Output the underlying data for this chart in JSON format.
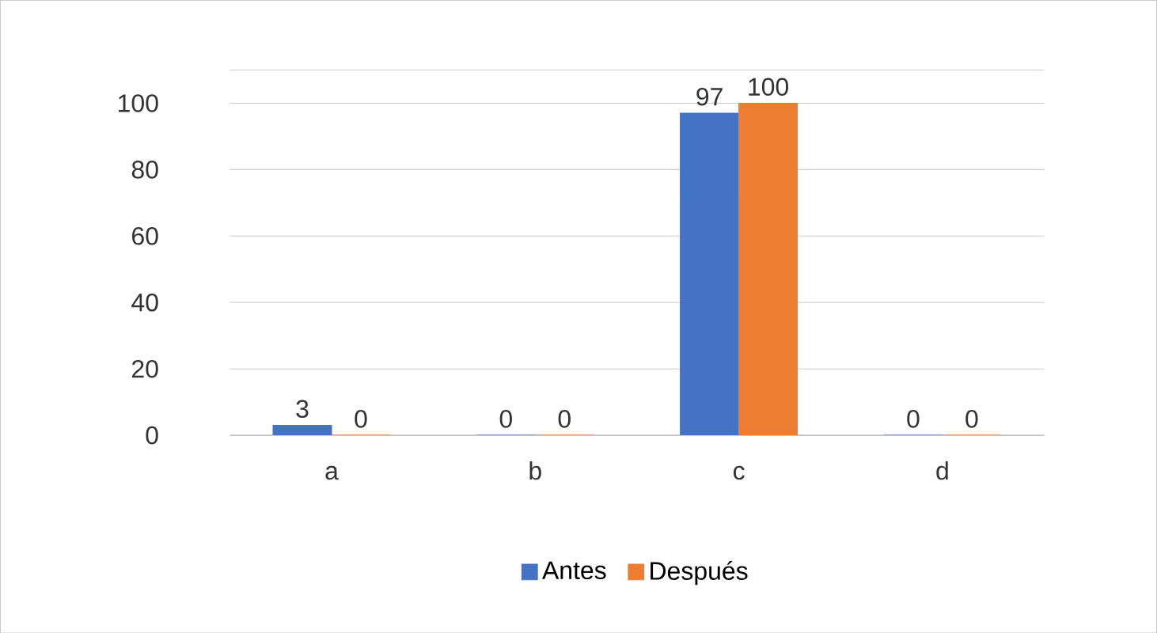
{
  "chart_data": {
    "type": "bar",
    "categories": [
      "a",
      "b",
      "c",
      "d"
    ],
    "series": [
      {
        "name": "Antes",
        "color": "#4472c4",
        "values": [
          3,
          0,
          97,
          0
        ]
      },
      {
        "name": "Después",
        "color": "#ed7d31",
        "values": [
          0,
          0,
          100,
          0
        ]
      }
    ],
    "ylim": [
      0,
      110
    ],
    "yticks": [
      0,
      20,
      40,
      60,
      80,
      100,
      {
        "value": 110,
        "label": null
      }
    ],
    "grid": "y",
    "legend": "bottom",
    "data_labels": true
  }
}
